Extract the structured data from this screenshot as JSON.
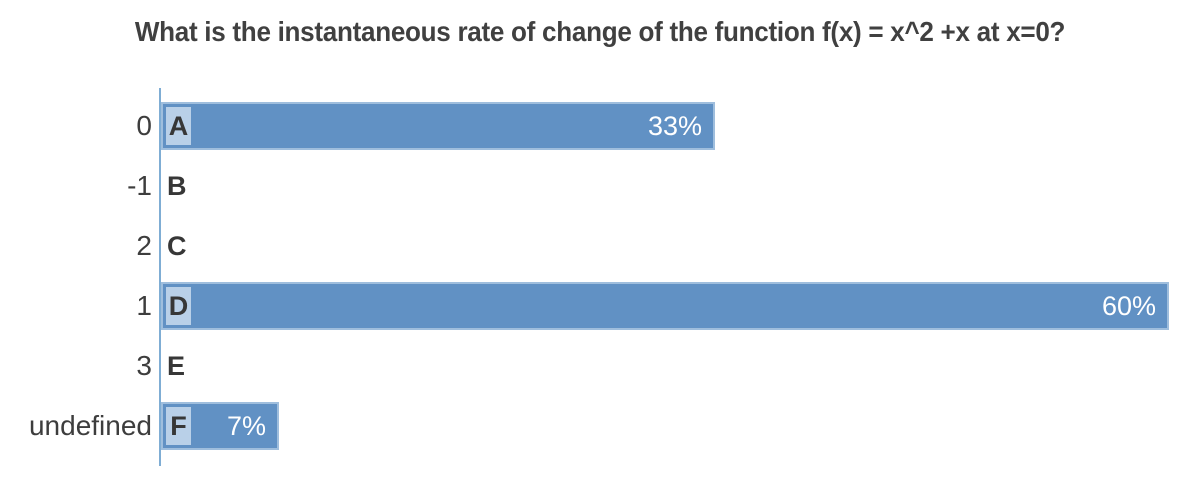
{
  "chart_data": {
    "type": "bar",
    "orientation": "horizontal",
    "title": "What is the instantaneous rate of change of the function f(x) = x^2 +x at x=0?",
    "categories": [
      "0",
      "-1",
      "2",
      "1",
      "3",
      "undefined"
    ],
    "option_letters": [
      "A",
      "B",
      "C",
      "D",
      "E",
      "F"
    ],
    "values": [
      33,
      0,
      0,
      60,
      0,
      7
    ],
    "value_labels": [
      "33%",
      "",
      "",
      "60%",
      "",
      "7%"
    ],
    "value_suffix": "%",
    "xlabel": "",
    "ylabel": "",
    "xlim": [
      0,
      60
    ],
    "grid": false,
    "legend": false,
    "colors": {
      "bar_fill": "#6191c4",
      "bar_border": "#9fbedd",
      "letter_badge_bg": "#b9d0e8",
      "axis_line": "#7fadd4",
      "label_text": "#3d3d3d",
      "letter_text": "#373737",
      "value_text": "#ffffff",
      "title_text": "#404040",
      "background": "#ffffff"
    }
  }
}
